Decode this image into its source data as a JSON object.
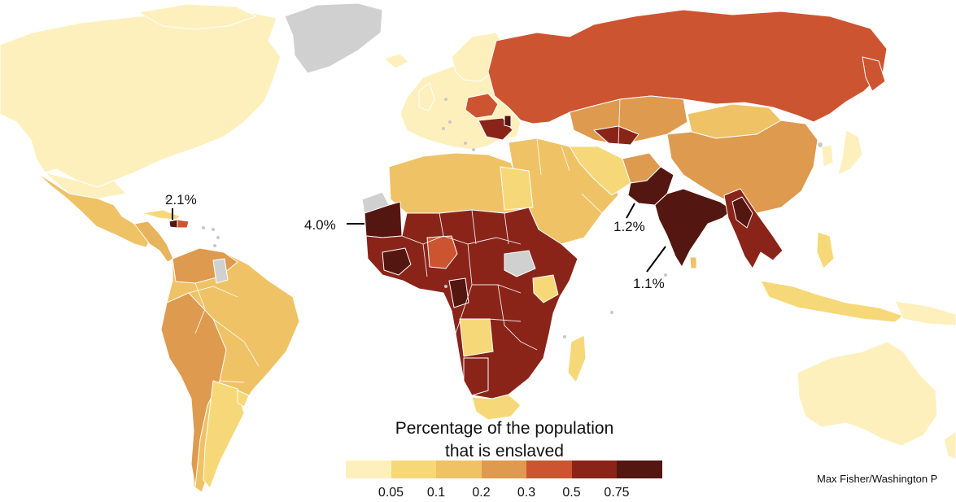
{
  "title_lines": [
    "Percentage of the population",
    "that is enslaved"
  ],
  "legend": {
    "colors": [
      "#fdf0bd",
      "#f6d878",
      "#efc266",
      "#de9a4e",
      "#cd5430",
      "#8a2419",
      "#541610"
    ],
    "ticks": [
      "0.05",
      "0.1",
      "0.2",
      "0.3",
      "0.5",
      "0.75"
    ]
  },
  "no_data_color": "#d0d0d0",
  "callouts": {
    "haiti": "2.1%",
    "mauritania": "4.0%",
    "pakistan": "1.2%",
    "india": "1.1%"
  },
  "credit": "Max Fisher/Washington P",
  "regions": [
    {
      "name": "North America",
      "band": 0
    },
    {
      "name": "Greenland",
      "band": "no data"
    },
    {
      "name": "Mexico",
      "band": 1
    },
    {
      "name": "South America",
      "band": 2
    },
    {
      "name": "Europe",
      "band": 0
    },
    {
      "name": "Russia",
      "band": 4
    },
    {
      "name": "China",
      "band": 2
    },
    {
      "name": "Pakistan",
      "band": 6
    },
    {
      "name": "India",
      "band": 6
    },
    {
      "name": "Mauritania",
      "band": 6
    },
    {
      "name": "Haiti",
      "band": 6
    },
    {
      "name": "Sub-Saharan Africa",
      "band": 5
    },
    {
      "name": "Australia",
      "band": 0
    }
  ]
}
